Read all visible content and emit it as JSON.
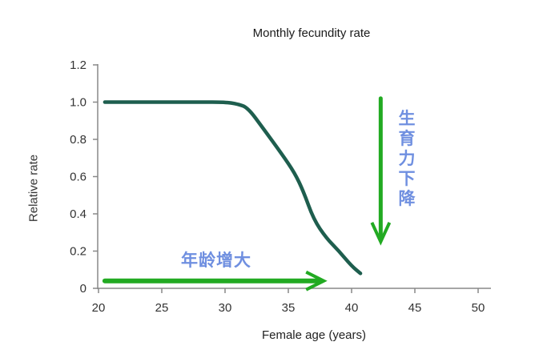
{
  "chart_data": {
    "type": "line",
    "title": "Monthly fecundity rate",
    "xlabel": "Female age (years)",
    "ylabel": "Relative rate",
    "xlim": [
      20,
      51
    ],
    "ylim": [
      0,
      1.2
    ],
    "x_ticks": [
      20,
      25,
      30,
      35,
      40,
      45,
      50
    ],
    "x_tick_labels": [
      "20",
      "25",
      "30",
      "35",
      "40",
      "45",
      "50"
    ],
    "y_ticks": [
      0,
      0.2,
      0.4,
      0.6,
      0.8,
      1.0,
      1.2
    ],
    "y_tick_labels": [
      "0",
      "0.2",
      "0.4",
      "0.6",
      "0.8",
      "1.0",
      "1.2"
    ],
    "grid": false,
    "legend": null,
    "series": [
      {
        "name": "Monthly fecundity rate",
        "color": "#1e5e4e",
        "x": [
          20.5,
          25,
          28,
          30,
          31,
          31.8,
          33,
          34.5,
          35.5,
          36.2,
          37,
          38,
          39,
          40,
          40.7
        ],
        "y": [
          1.0,
          1.0,
          1.0,
          1.0,
          0.99,
          0.97,
          0.86,
          0.72,
          0.62,
          0.52,
          0.37,
          0.27,
          0.2,
          0.12,
          0.08
        ]
      }
    ],
    "annotations": [
      {
        "type": "arrow",
        "direction": "right",
        "from": [
          20.5,
          0.04
        ],
        "to": [
          37.8,
          0.04
        ],
        "color": "#22aa22"
      },
      {
        "type": "arrow",
        "direction": "down",
        "from": [
          42.3,
          1.02
        ],
        "to": [
          42.3,
          0.25
        ],
        "color": "#22aa22"
      },
      {
        "type": "text",
        "text": "年龄增大",
        "meaning": "increasing age",
        "color": "#6f8fe0"
      },
      {
        "type": "text",
        "text": "生育力下降",
        "meaning": "declining fertility",
        "color": "#6f8fe0",
        "orientation": "vertical"
      }
    ]
  },
  "labels": {
    "title": "Monthly fecundity rate",
    "xlabel": "Female age (years)",
    "ylabel": "Relative rate",
    "age_increase": "年龄增大",
    "fertility_decline": "生育力下降"
  },
  "colors": {
    "curve": "#1e5e4e",
    "arrow": "#22aa22",
    "annotation_text": "#6f8fe0",
    "axis": "#888888"
  }
}
